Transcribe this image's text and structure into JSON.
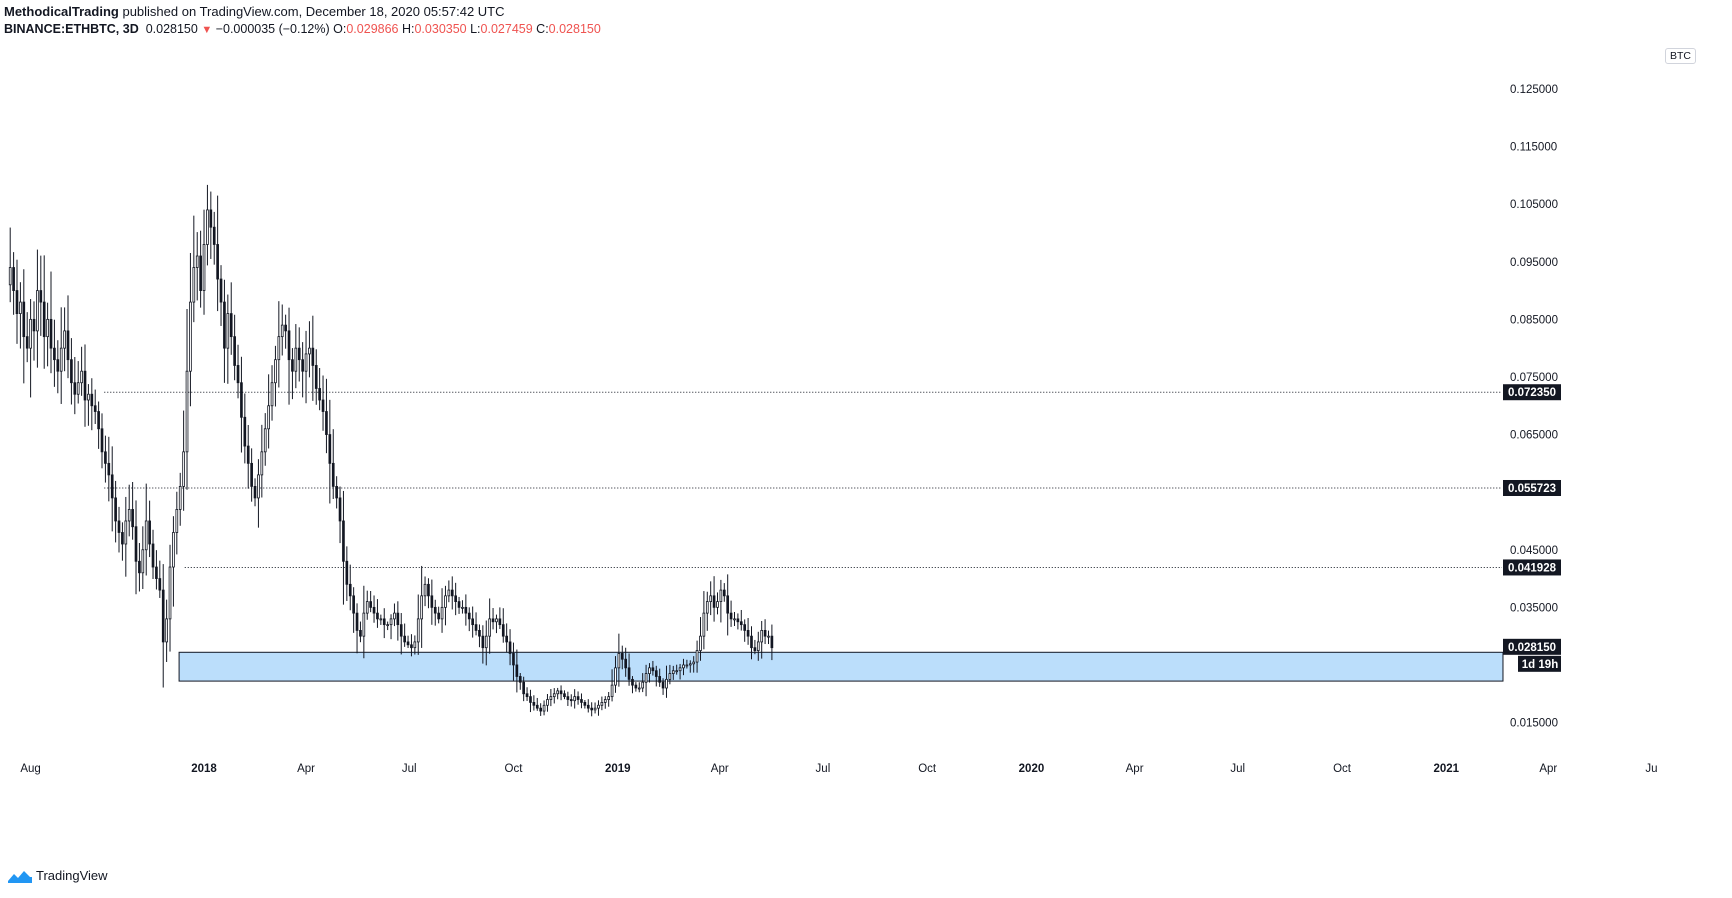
{
  "header": {
    "author": "MethodicalTrading",
    "published_text": "published on TradingView.com, December 18, 2020 05:57:42 UTC",
    "symbol": "BINANCE:ETHBTC, 3D",
    "last": "0.028150",
    "change_arrow": "▼",
    "change": "−0.000035 (−0.12%)",
    "o_label": "O:",
    "o_value": "0.029866",
    "h_label": "H:",
    "h_value": "0.030350",
    "l_label": "L:",
    "l_value": "0.027459",
    "c_label": "C:",
    "c_value": "0.028150"
  },
  "currency_badge": "BTC",
  "footer": {
    "brand": "TradingView",
    "logo_icon": "tradingview-logo-icon"
  },
  "colors": {
    "candle": "#131722",
    "zone_fill": "#bbdefb",
    "zone_stroke": "#131722",
    "tag_bg": "#131722",
    "down": "#ef5350"
  },
  "chart_data": {
    "type": "candlestick",
    "symbol": "BINANCE:ETHBTC",
    "interval": "3D",
    "ylim": [
      0.0085,
      0.1335
    ],
    "xlim": [
      "2017-07-05",
      "2021-07-05"
    ],
    "y_ticks": [
      "0.125000",
      "0.115000",
      "0.105000",
      "0.095000",
      "0.085000",
      "0.075000",
      "0.065000",
      "0.045000",
      "0.035000",
      "0.015000"
    ],
    "x_ticks": [
      {
        "label": "Aug",
        "date": "2017-08-01",
        "bold": false
      },
      {
        "label": "2018",
        "date": "2018-01-01",
        "bold": true
      },
      {
        "label": "Apr",
        "date": "2018-04-01",
        "bold": false
      },
      {
        "label": "Jul",
        "date": "2018-07-01",
        "bold": false
      },
      {
        "label": "Oct",
        "date": "2018-10-01",
        "bold": false
      },
      {
        "label": "2019",
        "date": "2019-01-01",
        "bold": true
      },
      {
        "label": "Apr",
        "date": "2019-04-01",
        "bold": false
      },
      {
        "label": "Jul",
        "date": "2019-07-01",
        "bold": false
      },
      {
        "label": "Oct",
        "date": "2019-10-01",
        "bold": false
      },
      {
        "label": "2020",
        "date": "2020-01-01",
        "bold": true
      },
      {
        "label": "Apr",
        "date": "2020-04-01",
        "bold": false
      },
      {
        "label": "Jul",
        "date": "2020-07-01",
        "bold": false
      },
      {
        "label": "Oct",
        "date": "2020-10-01",
        "bold": false
      },
      {
        "label": "2021",
        "date": "2021-01-01",
        "bold": true
      },
      {
        "label": "Apr",
        "date": "2021-04-01",
        "bold": false
      },
      {
        "label": "Ju",
        "date": "2021-07-01",
        "bold": false
      }
    ],
    "horizontal_levels": [
      {
        "price": 0.07235,
        "label": "0.072350",
        "from": "2017-10-05"
      },
      {
        "price": 0.055723,
        "label": "0.055723",
        "from": "2017-10-05"
      },
      {
        "price": 0.041928,
        "label": "0.041928",
        "from": "2017-12-15"
      }
    ],
    "last_price_tag": {
      "label": "0.028150",
      "price": 0.02815
    },
    "countdown_tag": {
      "label": "1d 19h"
    },
    "support_zone": {
      "from": "2017-12-10",
      "to": "2021-02-20",
      "top": 0.0272,
      "bottom": 0.0222
    },
    "candles": {
      "start": "2017-07-14",
      "step_days": 3,
      "open_first": 0.091,
      "close": [
        0.094,
        0.09,
        0.086,
        0.088,
        0.082,
        0.08,
        0.085,
        0.083,
        0.09,
        0.088,
        0.082,
        0.085,
        0.08,
        0.078,
        0.076,
        0.08,
        0.083,
        0.078,
        0.074,
        0.072,
        0.074,
        0.076,
        0.071,
        0.072,
        0.07,
        0.069,
        0.066,
        0.062,
        0.06,
        0.058,
        0.054,
        0.05,
        0.048,
        0.046,
        0.05,
        0.052,
        0.049,
        0.043,
        0.041,
        0.045,
        0.05,
        0.046,
        0.042,
        0.04,
        0.038,
        0.029,
        0.033,
        0.042,
        0.048,
        0.052,
        0.056,
        0.062,
        0.076,
        0.088,
        0.094,
        0.096,
        0.09,
        0.098,
        0.104,
        0.101,
        0.098,
        0.092,
        0.088,
        0.08,
        0.086,
        0.082,
        0.077,
        0.074,
        0.068,
        0.063,
        0.06,
        0.056,
        0.054,
        0.058,
        0.062,
        0.066,
        0.07,
        0.074,
        0.078,
        0.082,
        0.084,
        0.083,
        0.078,
        0.076,
        0.08,
        0.078,
        0.076,
        0.079,
        0.08,
        0.077,
        0.073,
        0.071,
        0.069,
        0.065,
        0.06,
        0.056,
        0.054,
        0.05,
        0.043,
        0.039,
        0.037,
        0.034,
        0.031,
        0.03,
        0.034,
        0.036,
        0.035,
        0.034,
        0.033,
        0.033,
        0.032,
        0.032,
        0.033,
        0.034,
        0.032,
        0.03,
        0.029,
        0.0285,
        0.028,
        0.029,
        0.033,
        0.037,
        0.039,
        0.037,
        0.035,
        0.034,
        0.033,
        0.035,
        0.037,
        0.038,
        0.037,
        0.036,
        0.035,
        0.035,
        0.034,
        0.033,
        0.032,
        0.031,
        0.03,
        0.028,
        0.03,
        0.033,
        0.0325,
        0.033,
        0.032,
        0.03,
        0.029,
        0.027,
        0.025,
        0.023,
        0.022,
        0.02,
        0.0195,
        0.0185,
        0.018,
        0.0175,
        0.017,
        0.018,
        0.019,
        0.0195,
        0.02,
        0.0205,
        0.02,
        0.0195,
        0.019,
        0.0188,
        0.0195,
        0.019,
        0.0185,
        0.018,
        0.0175,
        0.0172,
        0.0175,
        0.018,
        0.0185,
        0.019,
        0.0195,
        0.0215,
        0.0245,
        0.027,
        0.026,
        0.0245,
        0.0225,
        0.0215,
        0.021,
        0.021,
        0.022,
        0.0235,
        0.0245,
        0.024,
        0.023,
        0.022,
        0.021,
        0.0225,
        0.0235,
        0.024,
        0.024,
        0.0245,
        0.025,
        0.025,
        0.0252,
        0.0255,
        0.0275,
        0.03,
        0.034,
        0.036,
        0.037,
        0.035,
        0.036,
        0.038,
        0.037,
        0.034,
        0.033,
        0.033,
        0.0325,
        0.032,
        0.031,
        0.03,
        0.028,
        0.0275,
        0.029,
        0.031,
        0.03,
        0.03,
        0.028
      ]
    }
  }
}
